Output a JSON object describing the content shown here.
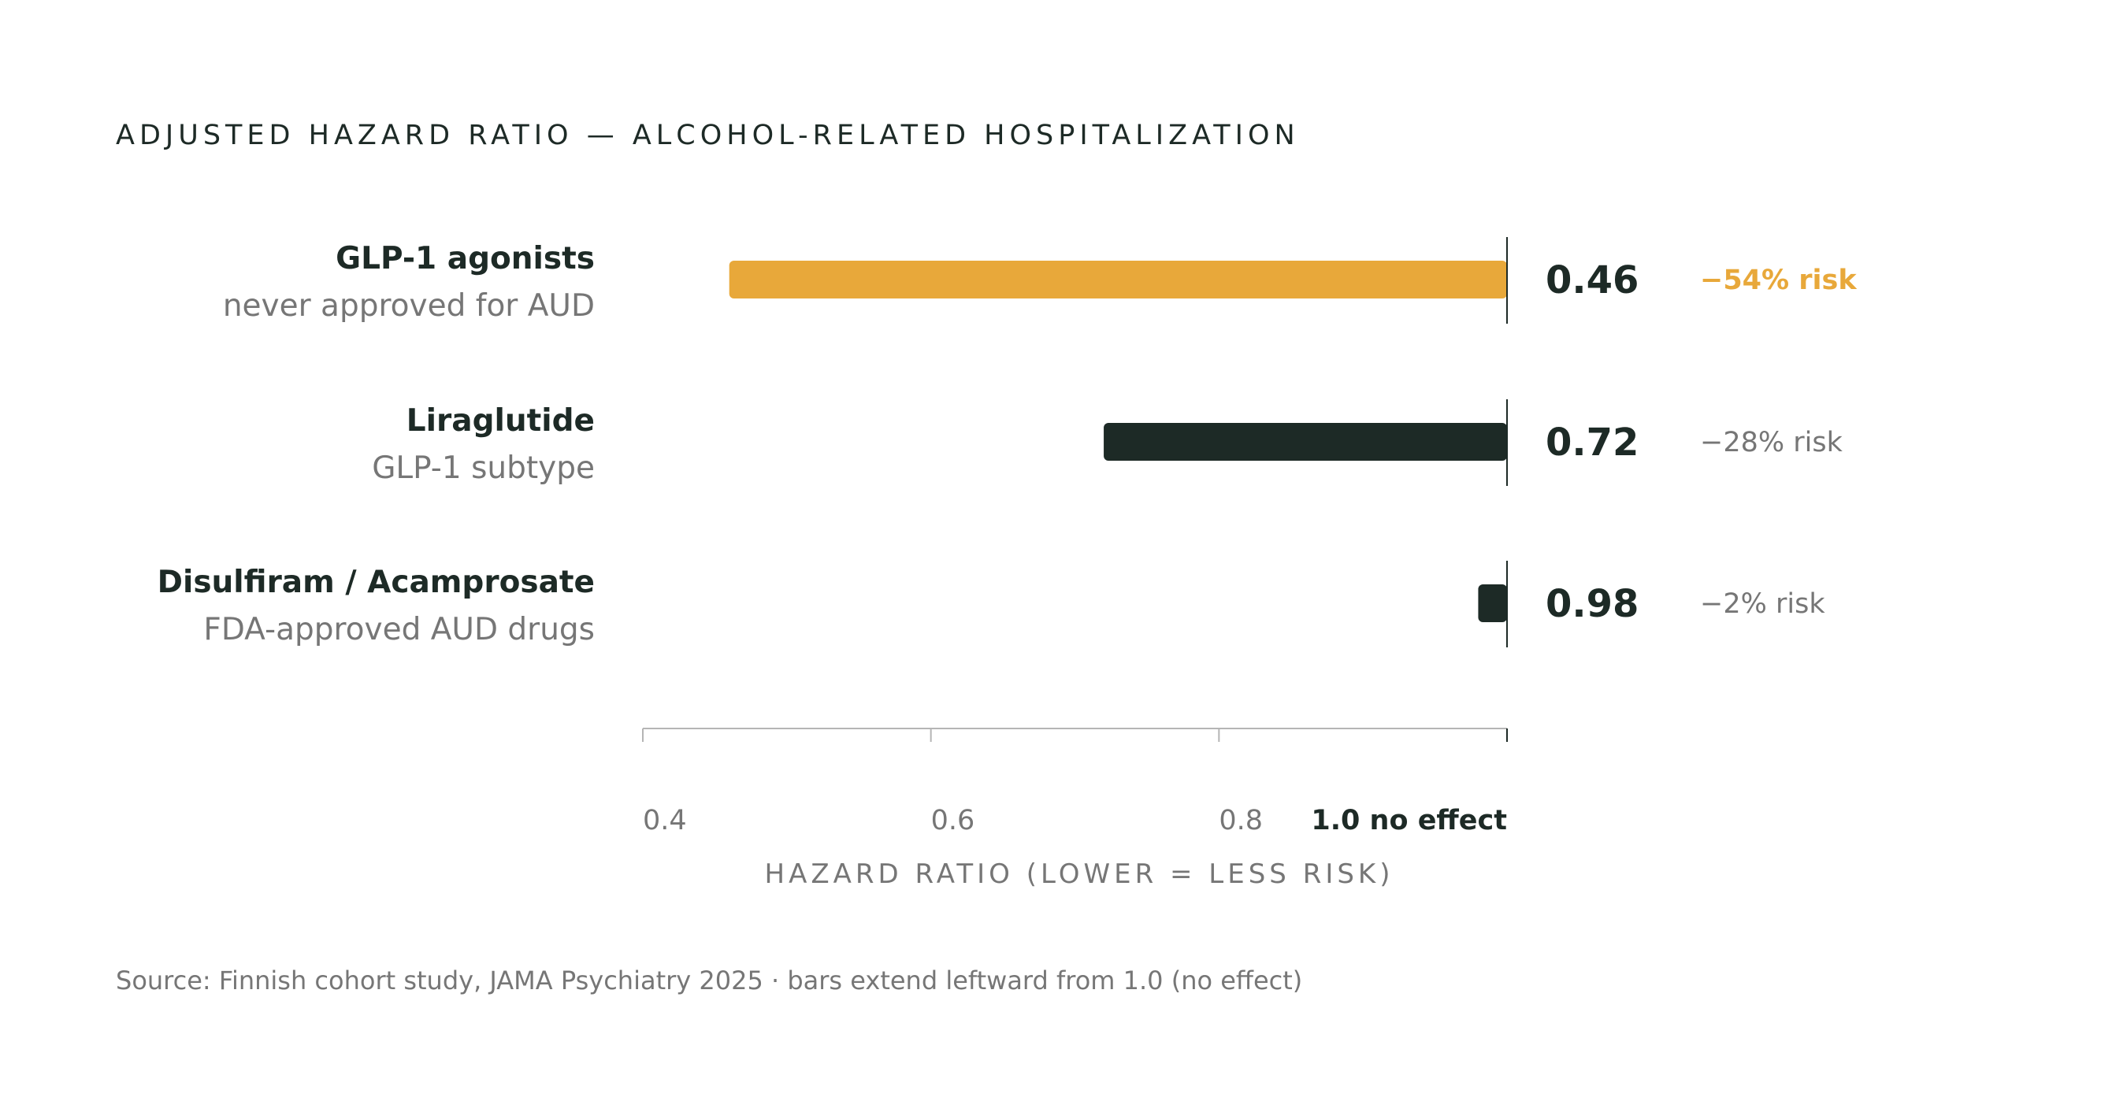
{
  "chart_data": {
    "type": "bar",
    "orientation": "horizontal",
    "baseline": 1.0,
    "xlim": [
      0.4,
      1.0
    ],
    "title": "ADJUSTED HAZARD RATIO — ALCOHOL-RELATED HOSPITALIZATION",
    "xlabel": "HAZARD RATIO (LOWER = LESS RISK)",
    "source": "Source: Finnish cohort study, JAMA Psychiatry 2025 · bars extend leftward from 1.0 (no effect)",
    "x_ticks": [
      {
        "value": 0.4,
        "label": "0.4"
      },
      {
        "value": 0.6,
        "label": "0.6"
      },
      {
        "value": 0.8,
        "label": "0.8"
      },
      {
        "value": 1.0,
        "label": "1.0 no effect"
      }
    ],
    "rows": [
      {
        "label": "GLP-1 agonists",
        "sublabel": "never approved for AUD",
        "value": 0.46,
        "value_label": "0.46",
        "risk_label": "−54% risk",
        "color": "#e8a83a",
        "highlight": true
      },
      {
        "label": "Liraglutide",
        "sublabel": "GLP-1 subtype",
        "value": 0.72,
        "value_label": "0.72",
        "risk_label": "−28% risk",
        "color": "#1d2a26",
        "highlight": false
      },
      {
        "label": "Disulfiram / Acamprosate",
        "sublabel": "FDA-approved AUD drugs",
        "value": 0.98,
        "value_label": "0.98",
        "risk_label": "−2% risk",
        "color": "#1d2a26",
        "highlight": false
      }
    ],
    "colors": {
      "highlight": "#e8a83a",
      "dark": "#1d2a26",
      "muted": "#767676",
      "axis": "#b5b5b5"
    }
  }
}
